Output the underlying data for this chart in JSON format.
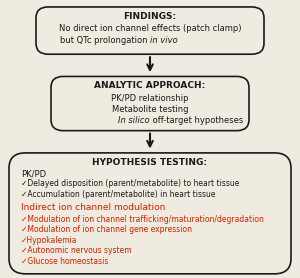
{
  "bg_color": "#f0ebe0",
  "box_bg": "#f0ebe0",
  "box_border": "#1a1a1a",
  "arrow_color": "#1a1a1a",
  "black_text": "#1a1a1a",
  "red_text": "#cc2200",
  "findings_title": "FINDINGS:",
  "findings_line1": "No direct ion channel effects (patch clamp)",
  "findings_line2_normal": "but QTc prolongation ",
  "findings_line2_italic": "in vivo",
  "analytic_title": "ANALYTIC APPROACH:",
  "analytic_line1": "PK/PD relationship",
  "analytic_line2": "Metabolite testing",
  "analytic_line3_italic": "In silico",
  "analytic_line3_normal": " off-target hypotheses",
  "hyp_title": "HYPOTHESIS TESTING:",
  "hyp_pkpd_label": "PK/PD",
  "hyp_pkpd_bullets": [
    "Delayed disposition (parent/metabolite) to heart tissue",
    "Accumulation (parent/metabolite) in heart tissue"
  ],
  "hyp_indirect_label": "Indirect ion channel modulation",
  "hyp_indirect_bullets": [
    "Modulation of ion channel trafficking/maturation/degradation",
    "Modulation of ion channel gene expression",
    "Hypokalemia",
    "Autonomic nervous system",
    "Glucose homeostasis"
  ]
}
